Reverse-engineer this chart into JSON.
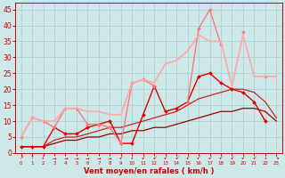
{
  "x": [
    0,
    1,
    2,
    3,
    4,
    5,
    6,
    7,
    8,
    9,
    10,
    11,
    12,
    13,
    14,
    15,
    16,
    17,
    18,
    19,
    20,
    21,
    22,
    23
  ],
  "series": [
    {
      "name": "dark_red_smooth",
      "color": "#990000",
      "linewidth": 0.9,
      "marker": null,
      "markersize": 0,
      "y": [
        2,
        2,
        2,
        3,
        4,
        4,
        5,
        5,
        6,
        6,
        7,
        7,
        8,
        8,
        9,
        10,
        11,
        12,
        13,
        13,
        14,
        14,
        13,
        10
      ]
    },
    {
      "name": "medium_red_smooth",
      "color": "#cc2222",
      "linewidth": 0.9,
      "marker": null,
      "markersize": 0,
      "y": [
        2,
        2,
        2,
        4,
        5,
        5,
        6,
        7,
        8,
        8,
        9,
        10,
        11,
        12,
        13,
        15,
        17,
        18,
        19,
        20,
        20,
        19,
        16,
        11
      ]
    },
    {
      "name": "bright_red_markers",
      "color": "#dd0000",
      "linewidth": 1.0,
      "marker": "D",
      "markersize": 2.0,
      "y": [
        2,
        2,
        2,
        8,
        6,
        6,
        8,
        9,
        10,
        3,
        3,
        12,
        21,
        13,
        14,
        16,
        24,
        25,
        22,
        20,
        19,
        16,
        10,
        null
      ]
    },
    {
      "name": "salmon_markers",
      "color": "#ff7777",
      "linewidth": 1.0,
      "marker": "D",
      "markersize": 2.0,
      "y": [
        5,
        11,
        10,
        8,
        14,
        14,
        9,
        9,
        8,
        3,
        22,
        23,
        21,
        null,
        null,
        16,
        39,
        45,
        34,
        null,
        38,
        null,
        24,
        null
      ]
    },
    {
      "name": "light_pink_smooth",
      "color": "#ffaaaa",
      "linewidth": 1.3,
      "marker": null,
      "markersize": 0,
      "y": [
        5,
        11,
        10,
        10,
        14,
        14,
        13,
        13,
        12,
        12,
        22,
        23,
        22,
        28,
        29,
        32,
        37,
        35,
        35,
        21,
        37,
        24,
        24,
        24
      ]
    }
  ],
  "xlim": [
    -0.5,
    23.5
  ],
  "ylim": [
    0,
    47
  ],
  "yticks": [
    0,
    5,
    10,
    15,
    20,
    25,
    30,
    35,
    40,
    45
  ],
  "xticks": [
    0,
    1,
    2,
    3,
    4,
    5,
    6,
    7,
    8,
    9,
    10,
    11,
    12,
    13,
    14,
    15,
    16,
    17,
    18,
    19,
    20,
    21,
    22,
    23
  ],
  "xlabel": "Vent moyen/en rafales ( km/h )",
  "bg_color": "#cce8e8",
  "grid_color": "#aacccc",
  "axis_color": "#cc0000",
  "label_color": "#cc0000",
  "arrow_symbols": [
    "↗",
    "↑",
    "↓",
    "→",
    "→",
    "→",
    "→",
    "→",
    "→",
    "↙",
    "↓",
    "↙",
    "↙",
    "↙",
    "↙",
    "↙",
    "↙",
    "↙",
    "↙",
    "↙",
    "↙",
    "↙",
    "↓",
    "↘"
  ]
}
